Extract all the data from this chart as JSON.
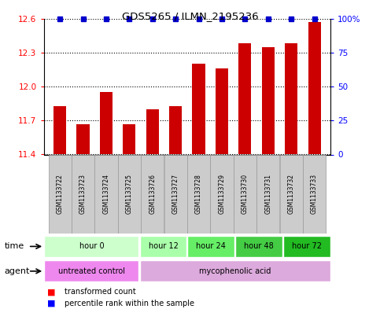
{
  "title": "GDS5265 / ILMN_2195236",
  "samples": [
    "GSM1133722",
    "GSM1133723",
    "GSM1133724",
    "GSM1133725",
    "GSM1133726",
    "GSM1133727",
    "GSM1133728",
    "GSM1133729",
    "GSM1133730",
    "GSM1133731",
    "GSM1133732",
    "GSM1133733"
  ],
  "bar_values": [
    11.83,
    11.67,
    11.95,
    11.67,
    11.8,
    11.83,
    12.2,
    12.16,
    12.38,
    12.35,
    12.38,
    12.57
  ],
  "percentile_values": [
    100,
    100,
    100,
    100,
    100,
    100,
    100,
    100,
    100,
    100,
    100,
    100
  ],
  "ylim": [
    11.4,
    12.6
  ],
  "yticks": [
    11.4,
    11.7,
    12.0,
    12.3,
    12.6
  ],
  "y2ticks": [
    0,
    25,
    50,
    75,
    100
  ],
  "y2labels": [
    "0",
    "25",
    "50",
    "75",
    "100%"
  ],
  "bar_color": "#cc0000",
  "percentile_color": "#0000cc",
  "plot_bg_color": "#ffffff",
  "time_groups": [
    {
      "label": "hour 0",
      "start": 0,
      "end": 4,
      "color": "#ccffcc"
    },
    {
      "label": "hour 12",
      "start": 4,
      "end": 6,
      "color": "#aaffaa"
    },
    {
      "label": "hour 24",
      "start": 6,
      "end": 8,
      "color": "#66ee66"
    },
    {
      "label": "hour 48",
      "start": 8,
      "end": 10,
      "color": "#44cc44"
    },
    {
      "label": "hour 72",
      "start": 10,
      "end": 12,
      "color": "#22bb22"
    }
  ],
  "agent_groups": [
    {
      "label": "untreated control",
      "start": 0,
      "end": 4,
      "color": "#ee88ee"
    },
    {
      "label": "mycophenolic acid",
      "start": 4,
      "end": 12,
      "color": "#ddaadd"
    }
  ],
  "sample_box_color": "#cccccc",
  "sample_box_edge": "#999999"
}
